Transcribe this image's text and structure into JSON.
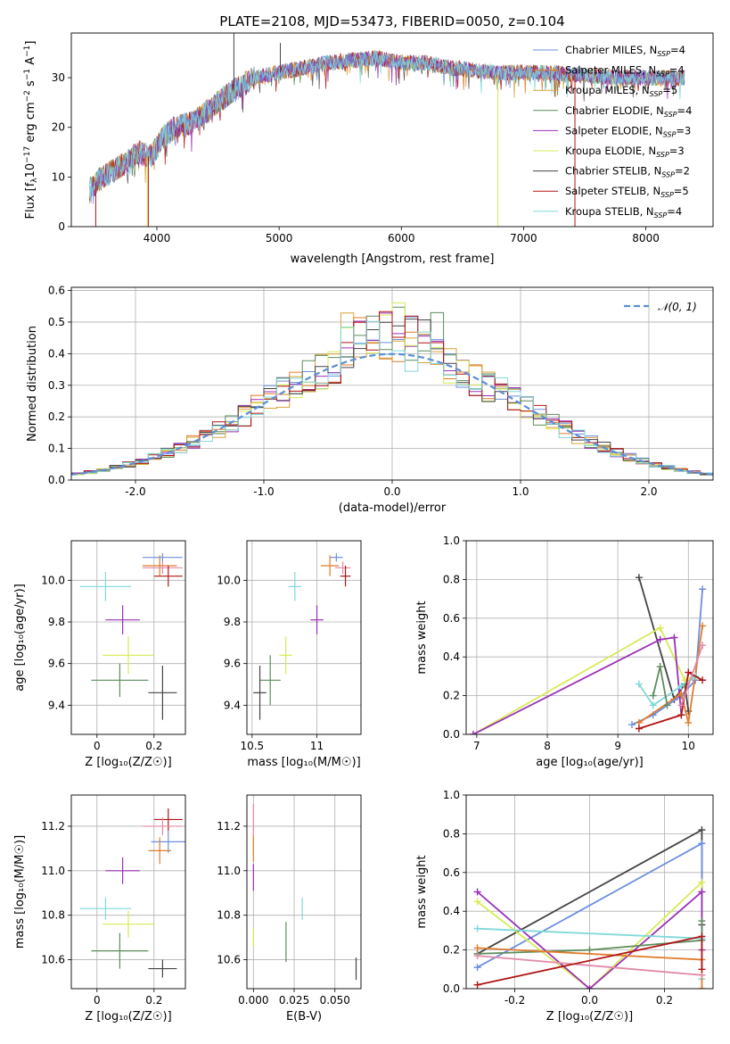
{
  "figure_title": "PLATE=2108, MJD=53473, FIBERID=0050, z=0.104",
  "colors": {
    "Chabrier MILES": "#6b8fe0",
    "Salpeter MILES": "#e4894f",
    "Kroupa MILES": "#d9a13a",
    "Chabrier ELODIE": "#5c8c5c",
    "Salpeter ELODIE": "#9b30b8",
    "Kroupa ELODIE": "#d8ea55",
    "Chabrier STELIB": "#444444",
    "Salpeter STELIB": "#b01515",
    "Kroupa STELIB": "#7fd8d8",
    "Salpeter MILES alt": "#e07c2a",
    "Salpeter MILES pink": "#e08aa8"
  },
  "chart_data": [
    {
      "id": "spectrum",
      "type": "line",
      "xlabel": "wavelength [Angstrom, rest frame]",
      "ylabel": "Flux [f_λ10^-17 erg cm^-2 s^-1 A^-1]",
      "xlim": [
        3300,
        8550
      ],
      "ylim": [
        0,
        39
      ],
      "xticks": [
        4000,
        5000,
        6000,
        7000,
        8000
      ],
      "yticks": [
        0,
        10,
        20,
        30
      ],
      "grid": false,
      "legend_position": "right",
      "legend": [
        {
          "label": "Chabrier MILES, N",
          "sub": "SSP",
          "tail": "=4",
          "color": "#6b8fe0"
        },
        {
          "label": "Salpeter MILES, N",
          "sub": "SSP",
          "tail": "=4",
          "color": "#e07c2a"
        },
        {
          "label": "Kroupa MILES, N",
          "sub": "SSP",
          "tail": "=5",
          "color": "#d9a13a"
        },
        {
          "label": "Chabrier ELODIE, N",
          "sub": "SSP",
          "tail": "=4",
          "color": "#5c8c5c"
        },
        {
          "label": "Salpeter ELODIE, N",
          "sub": "SSP",
          "tail": "=3",
          "color": "#9b30b8"
        },
        {
          "label": "Kroupa ELODIE, N",
          "sub": "SSP",
          "tail": "=3",
          "color": "#d8ea55"
        },
        {
          "label": "Chabrier STELIB, N",
          "sub": "SSP",
          "tail": "=2",
          "color": "#444444"
        },
        {
          "label": "Salpeter STELIB, N",
          "sub": "SSP",
          "tail": "=5",
          "color": "#b01515"
        },
        {
          "label": "Kroupa STELIB, N",
          "sub": "SSP",
          "tail": "=4",
          "color": "#7fd8d8"
        }
      ],
      "continuum_knots": [
        [
          3450,
          7.5
        ],
        [
          3550,
          10
        ],
        [
          3700,
          12
        ],
        [
          3850,
          15
        ],
        [
          3950,
          14
        ],
        [
          4050,
          18
        ],
        [
          4150,
          20
        ],
        [
          4300,
          21
        ],
        [
          4450,
          24
        ],
        [
          4600,
          27
        ],
        [
          4800,
          30
        ],
        [
          5000,
          31
        ],
        [
          5200,
          32
        ],
        [
          5400,
          33
        ],
        [
          5600,
          33.5
        ],
        [
          5800,
          34
        ],
        [
          6000,
          33
        ],
        [
          6200,
          33
        ],
        [
          6400,
          32
        ],
        [
          6600,
          31.5
        ],
        [
          6800,
          31
        ],
        [
          7000,
          31
        ],
        [
          7200,
          31
        ],
        [
          7500,
          30.5
        ],
        [
          7800,
          30
        ],
        [
          8000,
          30
        ],
        [
          8300,
          30
        ]
      ],
      "spikes": [
        [
          3500,
          0,
          "#b01515"
        ],
        [
          3920,
          0,
          "#d8ea55"
        ],
        [
          3930,
          0,
          "#b01515"
        ],
        [
          5010,
          37,
          "#444444"
        ],
        [
          6790,
          0,
          "#d8ea55"
        ],
        [
          7420,
          0,
          "#b01515"
        ],
        [
          4630,
          39,
          "#444444"
        ]
      ]
    },
    {
      "id": "residuals",
      "type": "histogram",
      "xlabel": "(data-model)/error",
      "ylabel": "Normed distribution",
      "xlim": [
        -2.5,
        2.5
      ],
      "ylim": [
        0,
        0.61
      ],
      "xticks": [
        -2,
        -1,
        0,
        1,
        2
      ],
      "yticks": [
        0.0,
        0.1,
        0.2,
        0.3,
        0.4,
        0.5,
        0.6
      ],
      "grid": true,
      "legend": [
        {
          "label": "𝒩(0, 1)",
          "color": "#5b8ed9",
          "style": "dashed"
        }
      ],
      "bin_width": 0.1
    },
    {
      "id": "age_vs_Z",
      "type": "errorbar",
      "xlabel": "Z [log₁₀(Z/Z☉)]",
      "ylabel": "age  [log₁₀(age/yr)]",
      "xlim": [
        -0.09,
        0.31
      ],
      "ylim": [
        9.26,
        10.19
      ],
      "xticks": [
        0.0,
        0.2
      ],
      "yticks": [
        9.4,
        9.6,
        9.8,
        10.0
      ],
      "grid": true,
      "points": [
        {
          "x": 0.23,
          "y": 10.11,
          "xerr": 0.07,
          "yerr": 0.02,
          "color": "#6b8fe0"
        },
        {
          "x": 0.22,
          "y": 10.07,
          "xerr": 0.06,
          "yerr": 0.05,
          "color": "#e07c2a"
        },
        {
          "x": 0.23,
          "y": 10.06,
          "xerr": 0.07,
          "yerr": 0.03,
          "color": "#e08aa8"
        },
        {
          "x": 0.25,
          "y": 10.02,
          "xerr": 0.05,
          "yerr": 0.05,
          "color": "#b01515"
        },
        {
          "x": 0.03,
          "y": 9.97,
          "xerr": 0.09,
          "yerr": 0.07,
          "color": "#7fd8d8"
        },
        {
          "x": 0.09,
          "y": 9.81,
          "xerr": 0.06,
          "yerr": 0.07,
          "color": "#9b30b8"
        },
        {
          "x": 0.11,
          "y": 9.64,
          "xerr": 0.09,
          "yerr": 0.09,
          "color": "#d8ea55"
        },
        {
          "x": 0.08,
          "y": 9.52,
          "xerr": 0.1,
          "yerr": 0.08,
          "color": "#5c8c5c"
        },
        {
          "x": 0.23,
          "y": 9.46,
          "xerr": 0.05,
          "yerr": 0.13,
          "color": "#444444"
        }
      ]
    },
    {
      "id": "age_vs_mass",
      "type": "errorbar",
      "xlabel": "mass [log₁₀(M/M☉)]",
      "ylabel": "",
      "xlim": [
        10.46,
        11.34
      ],
      "ylim": [
        9.26,
        10.19
      ],
      "xticks": [
        10.5,
        11.0
      ],
      "yticks": [
        9.4,
        9.6,
        9.8,
        10.0
      ],
      "grid": true,
      "points": [
        {
          "x": 11.15,
          "y": 10.11,
          "xerr": 0.05,
          "yerr": 0.02,
          "color": "#6b8fe0"
        },
        {
          "x": 11.1,
          "y": 10.07,
          "xerr": 0.07,
          "yerr": 0.05,
          "color": "#e07c2a"
        },
        {
          "x": 11.2,
          "y": 10.06,
          "xerr": 0.06,
          "yerr": 0.03,
          "color": "#e08aa8"
        },
        {
          "x": 11.22,
          "y": 10.02,
          "xerr": 0.04,
          "yerr": 0.05,
          "color": "#b01515"
        },
        {
          "x": 10.83,
          "y": 9.97,
          "xerr": 0.05,
          "yerr": 0.07,
          "color": "#7fd8d8"
        },
        {
          "x": 11.0,
          "y": 9.81,
          "xerr": 0.05,
          "yerr": 0.07,
          "color": "#9b30b8"
        },
        {
          "x": 10.76,
          "y": 9.64,
          "xerr": 0.05,
          "yerr": 0.09,
          "color": "#d8ea55"
        },
        {
          "x": 10.64,
          "y": 9.52,
          "xerr": 0.08,
          "yerr": 0.12,
          "color": "#5c8c5c"
        },
        {
          "x": 10.56,
          "y": 9.46,
          "xerr": 0.05,
          "yerr": 0.13,
          "color": "#444444"
        }
      ]
    },
    {
      "id": "mass_weight_vs_age",
      "type": "line",
      "xlabel": "age  [log₁₀(age/yr)]",
      "ylabel": "mass weight",
      "xlim": [
        6.85,
        10.35
      ],
      "ylim": [
        0.0,
        1.0
      ],
      "xticks": [
        7,
        8,
        9,
        10
      ],
      "yticks": [
        0.0,
        0.2,
        0.4,
        0.6,
        0.8,
        1.0
      ],
      "grid": true,
      "series": [
        {
          "color": "#444444",
          "points": [
            [
              9.3,
              0.81
            ],
            [
              9.8,
              0.18
            ],
            [
              9.95,
              0.26
            ],
            [
              10.0,
              0.12
            ]
          ]
        },
        {
          "color": "#6b8fe0",
          "points": [
            [
              9.2,
              0.05
            ],
            [
              9.5,
              0.1
            ],
            [
              9.9,
              0.2
            ],
            [
              10.1,
              0.28
            ],
            [
              10.2,
              0.75
            ]
          ]
        },
        {
          "color": "#d8ea55",
          "points": [
            [
              6.95,
              0.0
            ],
            [
              9.6,
              0.55
            ],
            [
              9.95,
              0.28
            ],
            [
              10.1,
              0.3
            ]
          ]
        },
        {
          "color": "#9b30b8",
          "points": [
            [
              6.95,
              0.0
            ],
            [
              9.6,
              0.49
            ],
            [
              9.8,
              0.5
            ],
            [
              9.9,
              0.1
            ]
          ]
        },
        {
          "color": "#e07c2a",
          "points": [
            [
              9.3,
              0.06
            ],
            [
              9.9,
              0.21
            ],
            [
              10.0,
              0.06
            ],
            [
              10.2,
              0.56
            ]
          ]
        },
        {
          "color": "#7fd8d8",
          "points": [
            [
              9.3,
              0.26
            ],
            [
              9.5,
              0.15
            ],
            [
              9.9,
              0.25
            ],
            [
              10.1,
              0.3
            ]
          ]
        },
        {
          "color": "#5c8c5c",
          "points": [
            [
              9.5,
              0.2
            ],
            [
              9.6,
              0.35
            ],
            [
              9.7,
              0.15
            ]
          ]
        },
        {
          "color": "#b01515",
          "points": [
            [
              9.3,
              0.03
            ],
            [
              9.9,
              0.1
            ],
            [
              10.0,
              0.32
            ],
            [
              10.2,
              0.28
            ]
          ]
        },
        {
          "color": "#e08aa8",
          "points": [
            [
              9.9,
              0.15
            ],
            [
              10.2,
              0.46
            ]
          ]
        }
      ]
    },
    {
      "id": "mass_vs_Z",
      "type": "errorbar",
      "xlabel": "Z [log₁₀(Z/Z☉)]",
      "ylabel": "mass [log₁₀(M/M☉)]",
      "xlim": [
        -0.09,
        0.31
      ],
      "ylim": [
        10.47,
        11.34
      ],
      "xticks": [
        0.0,
        0.2
      ],
      "yticks": [
        10.6,
        10.8,
        11.0,
        11.2
      ],
      "grid": true,
      "points": [
        {
          "x": 0.25,
          "y": 11.23,
          "xerr": 0.05,
          "yerr": 0.05,
          "color": "#b01515"
        },
        {
          "x": 0.23,
          "y": 11.2,
          "xerr": 0.07,
          "yerr": 0.04,
          "color": "#e08aa8"
        },
        {
          "x": 0.25,
          "y": 11.13,
          "xerr": 0.06,
          "yerr": 0.05,
          "color": "#6b8fe0"
        },
        {
          "x": 0.22,
          "y": 11.09,
          "xerr": 0.04,
          "yerr": 0.06,
          "color": "#e07c2a"
        },
        {
          "x": 0.09,
          "y": 11.0,
          "xerr": 0.06,
          "yerr": 0.06,
          "color": "#9b30b8"
        },
        {
          "x": 0.03,
          "y": 10.83,
          "xerr": 0.09,
          "yerr": 0.05,
          "color": "#7fd8d8"
        },
        {
          "x": 0.11,
          "y": 10.76,
          "xerr": 0.09,
          "yerr": 0.06,
          "color": "#d8ea55"
        },
        {
          "x": 0.08,
          "y": 10.64,
          "xerr": 0.1,
          "yerr": 0.08,
          "color": "#5c8c5c"
        },
        {
          "x": 0.23,
          "y": 10.56,
          "xerr": 0.05,
          "yerr": 0.04,
          "color": "#444444"
        }
      ]
    },
    {
      "id": "mass_vs_ebv",
      "type": "errorbar",
      "xlabel": "E(B-V)",
      "ylabel": "",
      "xlim": [
        -0.004,
        0.066
      ],
      "ylim": [
        10.47,
        11.34
      ],
      "xticks": [
        0.0,
        0.025,
        0.05
      ],
      "xticklabels": [
        "0.000",
        "0.025",
        "0.050"
      ],
      "yticks": [
        10.6,
        10.8,
        11.0,
        11.2
      ],
      "grid": true,
      "points": [
        {
          "x": 0.0,
          "y": 11.23,
          "xerr": 0,
          "yerr": 0.07,
          "color": "#e08aa8"
        },
        {
          "x": 0.0,
          "y": 11.1,
          "xerr": 0,
          "yerr": 0.06,
          "color": "#e07c2a"
        },
        {
          "x": 0.0,
          "y": 10.97,
          "xerr": 0,
          "yerr": 0.06,
          "color": "#9b30b8"
        },
        {
          "x": 0.0,
          "y": 10.7,
          "xerr": 0,
          "yerr": 0.04,
          "color": "#d8ea55"
        },
        {
          "x": 0.03,
          "y": 10.83,
          "xerr": 0,
          "yerr": 0.05,
          "color": "#7fd8d8"
        },
        {
          "x": 0.02,
          "y": 10.68,
          "xerr": 0,
          "yerr": 0.09,
          "color": "#5c8c5c"
        },
        {
          "x": 0.063,
          "y": 10.56,
          "xerr": 0,
          "yerr": 0.05,
          "color": "#444444"
        }
      ]
    },
    {
      "id": "mass_weight_vs_Z",
      "type": "line",
      "xlabel": "Z [log₁₀(Z/Z☉)]",
      "ylabel": "mass weight",
      "xlim": [
        -0.33,
        0.33
      ],
      "ylim": [
        0.0,
        1.0
      ],
      "xticks": [
        -0.2,
        0.0,
        0.2
      ],
      "yticks": [
        0.0,
        0.2,
        0.4,
        0.6,
        0.8,
        1.0
      ],
      "grid": true,
      "series": [
        {
          "color": "#444444",
          "points": [
            [
              -0.3,
              0.18
            ],
            [
              0.3,
              0.82
            ],
            [
              0.3,
              0.33
            ]
          ]
        },
        {
          "color": "#6b8fe0",
          "points": [
            [
              -0.3,
              0.11
            ],
            [
              0.3,
              0.75
            ],
            [
              0.3,
              0.25
            ]
          ]
        },
        {
          "color": "#d8ea55",
          "points": [
            [
              -0.3,
              0.45
            ],
            [
              0.0,
              0.0
            ],
            [
              0.3,
              0.55
            ],
            [
              0.3,
              0.2
            ]
          ]
        },
        {
          "color": "#9b30b8",
          "points": [
            [
              -0.3,
              0.5
            ],
            [
              0.0,
              0.0
            ],
            [
              0.3,
              0.5
            ],
            [
              0.3,
              0.2
            ]
          ]
        },
        {
          "color": "#7fd8d8",
          "points": [
            [
              -0.3,
              0.31
            ],
            [
              0.3,
              0.26
            ],
            [
              0.3,
              0.05
            ]
          ]
        },
        {
          "color": "#5c8c5c",
          "points": [
            [
              -0.3,
              0.18
            ],
            [
              0.0,
              0.2
            ],
            [
              0.3,
              0.25
            ],
            [
              0.3,
              0.35
            ]
          ]
        },
        {
          "color": "#e07c2a",
          "points": [
            [
              -0.3,
              0.21
            ],
            [
              0.3,
              0.15
            ],
            [
              0.3,
              0.0
            ]
          ]
        },
        {
          "color": "#e08aa8",
          "points": [
            [
              -0.3,
              0.17
            ],
            [
              0.3,
              0.07
            ]
          ]
        },
        {
          "color": "#b01515",
          "points": [
            [
              -0.3,
              0.02
            ],
            [
              0.3,
              0.27
            ],
            [
              0.3,
              0.1
            ]
          ]
        }
      ]
    }
  ]
}
